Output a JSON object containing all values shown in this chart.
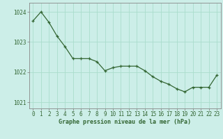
{
  "x": [
    0,
    1,
    2,
    3,
    4,
    5,
    6,
    7,
    8,
    9,
    10,
    11,
    12,
    13,
    14,
    15,
    16,
    17,
    18,
    19,
    20,
    21,
    22,
    23
  ],
  "y": [
    1023.7,
    1024.0,
    1023.65,
    1023.2,
    1022.85,
    1022.45,
    1022.45,
    1022.45,
    1022.35,
    1022.05,
    1022.15,
    1022.2,
    1022.2,
    1022.2,
    1022.05,
    1021.85,
    1021.7,
    1021.6,
    1021.45,
    1021.35,
    1021.5,
    1021.5,
    1021.5,
    1021.9
  ],
  "line_color": "#336633",
  "marker": "+",
  "marker_size": 3.5,
  "marker_linewidth": 0.9,
  "background_color": "#cceee8",
  "grid_color": "#aaddcc",
  "xlabel": "Graphe pression niveau de la mer (hPa)",
  "xlabel_color": "#336633",
  "tick_color": "#336633",
  "ylim": [
    1020.8,
    1024.3
  ],
  "yticks": [
    1021,
    1022,
    1023,
    1024
  ],
  "xlim": [
    -0.5,
    23.5
  ],
  "xticks": [
    0,
    1,
    2,
    3,
    4,
    5,
    6,
    7,
    8,
    9,
    10,
    11,
    12,
    13,
    14,
    15,
    16,
    17,
    18,
    19,
    20,
    21,
    22,
    23
  ],
  "spine_color": "#888888",
  "linewidth": 0.9
}
